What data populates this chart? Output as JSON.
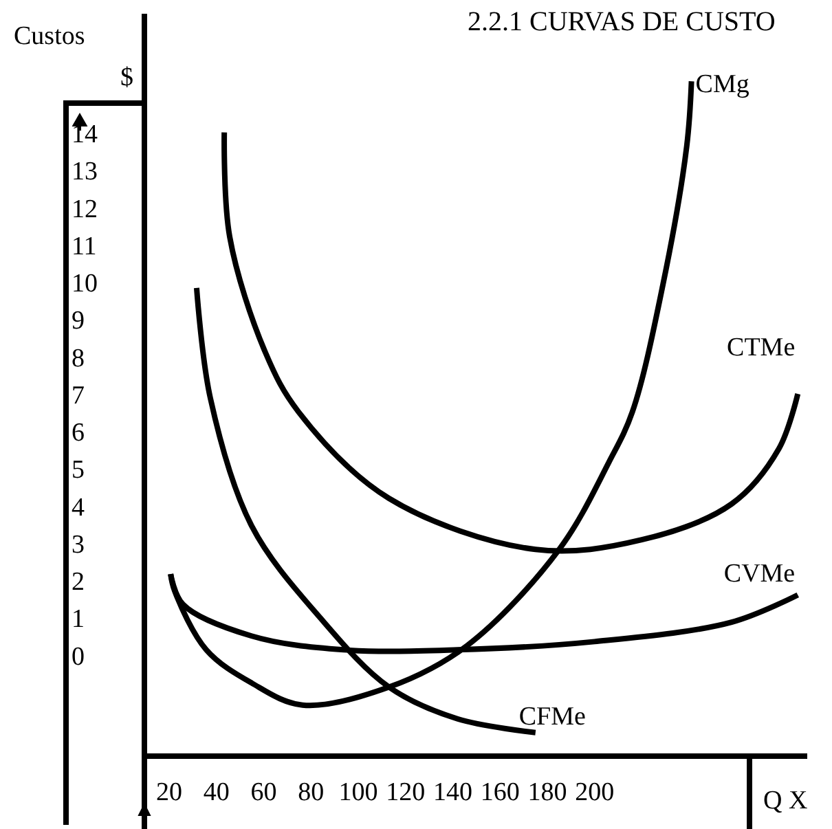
{
  "chart_data": {
    "type": "line",
    "title": "2.2.1 CURVAS DE CUSTO",
    "ylabel": "Custos",
    "xlabel": "Q X",
    "annotations": [
      "$"
    ],
    "xlim": [
      9.5,
      290
    ],
    "ylim": [
      -2.7,
      17.2
    ],
    "xticks": [
      20,
      40,
      60,
      80,
      100,
      120,
      140,
      160,
      180,
      200
    ],
    "yticks": [
      0,
      1,
      2,
      3,
      4,
      5,
      6,
      7,
      8,
      9,
      10,
      11,
      12,
      13,
      14
    ],
    "grid": false,
    "marker": "none",
    "line_style": "solid",
    "series": [
      {
        "name": "CMg",
        "color": "#000000",
        "x": [
          20.6,
          22.3,
          35.7,
          54.9,
          76.4,
          113,
          146,
          185,
          206,
          216,
          229,
          239,
          241
        ],
        "values": [
          2.18,
          1.73,
          0.15,
          -0.74,
          -1.33,
          -0.85,
          0.26,
          2.84,
          5.17,
          6.53,
          9.96,
          13.65,
          15.39
        ]
      },
      {
        "name": "CTMe",
        "color": "#000000",
        "x": [
          43.3,
          45.6,
          60.7,
          74.7,
          113,
          175,
          220,
          258,
          278,
          286
        ],
        "values": [
          14.02,
          11.22,
          8.12,
          6.53,
          4.21,
          2.84,
          3.1,
          4.06,
          5.54,
          7.01
        ]
      },
      {
        "name": "CVMe",
        "color": "#000000",
        "x": [
          20.6,
          25.8,
          54.9,
          93.8,
          142,
          200,
          258,
          286
        ],
        "values": [
          2.18,
          1.37,
          0.52,
          0.15,
          0.15,
          0.37,
          0.89,
          1.62
        ]
      },
      {
        "name": "CFMe",
        "color": "#000000",
        "x": [
          31.6,
          37.4,
          54.9,
          84,
          113,
          142,
          175
        ],
        "values": [
          9.85,
          6.9,
          3.47,
          1.0,
          -0.85,
          -1.7,
          -2.07
        ]
      }
    ]
  }
}
